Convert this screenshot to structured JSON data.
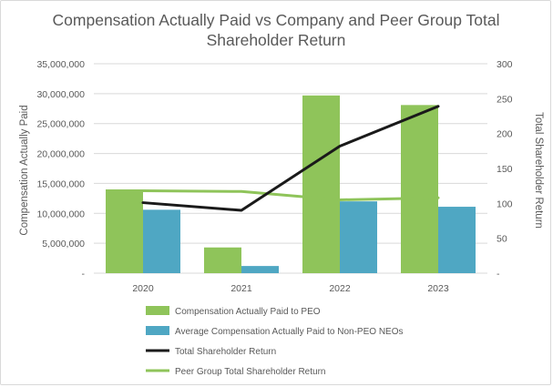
{
  "chart_data": {
    "type": "bar-line-combo",
    "title_lines": [
      "Compensation Actually Paid vs Company and Peer Group Total",
      "Shareholder Return"
    ],
    "categories": [
      "2020",
      "2021",
      "2022",
      "2023"
    ],
    "ylabel_left": "Compensation Actually Paid",
    "ylabel_right": "Total Shareholder Return",
    "ylim_left": [
      0,
      35000000
    ],
    "ylim_right": [
      0,
      300
    ],
    "left_ticks": [
      "-",
      "5,000,000",
      "10,000,000",
      "15,000,000",
      "20,000,000",
      "25,000,000",
      "30,000,000",
      "35,000,000"
    ],
    "left_tick_values": [
      0,
      5000000,
      10000000,
      15000000,
      20000000,
      25000000,
      30000000,
      35000000
    ],
    "right_ticks": [
      "-",
      "50",
      "100",
      "150",
      "200",
      "250",
      "300"
    ],
    "right_tick_values": [
      0,
      50,
      100,
      150,
      200,
      250,
      300
    ],
    "grid": true,
    "legend_position": "bottom",
    "series": [
      {
        "name": "Compensation Actually Paid to PEO",
        "kind": "bar",
        "axis": "left",
        "color": "#8fc45a",
        "values": [
          14000000,
          4300000,
          29700000,
          28100000
        ]
      },
      {
        "name": "Average Compensation Actually Paid to Non-PEO NEOs",
        "kind": "bar",
        "axis": "left",
        "color": "#4fa7c3",
        "values": [
          10600000,
          1200000,
          12000000,
          11100000
        ]
      },
      {
        "name": "Total Shareholder Return",
        "kind": "line",
        "axis": "right",
        "color": "#1a1a1a",
        "values": [
          101,
          90,
          182,
          239
        ]
      },
      {
        "name": "Peer Group Total Shareholder Return",
        "kind": "line",
        "axis": "right",
        "color": "#8fc45a",
        "values": [
          118,
          117,
          105,
          108
        ]
      }
    ]
  }
}
